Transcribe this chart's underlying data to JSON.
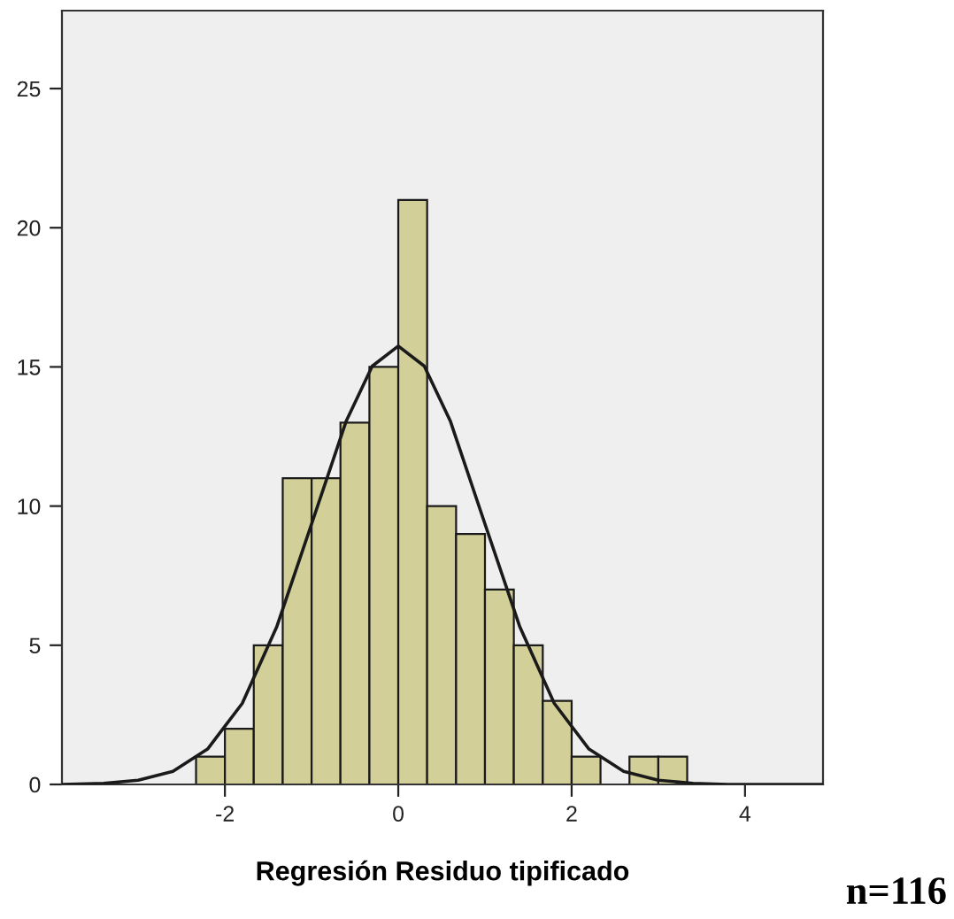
{
  "chart_data": {
    "type": "histogram",
    "xlabel": "Regresión Residuo tipificado",
    "color": "#d3cf98",
    "bins": [
      -2.333,
      -2.0,
      -1.667,
      -1.333,
      -1.0,
      -0.667,
      -0.333,
      0.0,
      0.333,
      0.667,
      1.0,
      1.333,
      1.667,
      2.0,
      2.333,
      2.667,
      3.0,
      3.333
    ],
    "values": [
      1,
      2,
      5,
      11,
      11,
      13,
      15,
      21,
      10,
      9,
      7,
      5,
      3,
      1,
      0,
      1,
      1
    ],
    "series": [
      {
        "type": "line",
        "color": "#1a1a1a",
        "x": [
          -3.88,
          -3.4,
          -3.0,
          -2.6,
          -2.2,
          -1.8,
          -1.4,
          -1.0,
          -0.6,
          -0.3,
          0.0,
          0.3,
          0.6,
          1.0,
          1.4,
          1.8,
          2.2,
          2.6,
          3.0,
          3.4,
          3.8,
          4.2,
          4.9
        ],
        "values": [
          0.0,
          0.04,
          0.15,
          0.47,
          1.27,
          2.91,
          5.68,
          9.36,
          13.06,
          15.03,
          15.75,
          15.03,
          13.06,
          9.36,
          5.68,
          2.91,
          1.27,
          0.47,
          0.15,
          0.04,
          0.0,
          0.0,
          0.0
        ]
      }
    ],
    "xlim": [
      -3.88,
      4.9
    ],
    "xticks": [
      -2,
      0,
      2,
      4
    ],
    "ylim": [
      0,
      27.8
    ],
    "yticks": [
      0,
      5,
      10,
      15,
      20,
      25
    ],
    "grid": false,
    "legend": false,
    "annotations": [
      "n=116"
    ]
  }
}
